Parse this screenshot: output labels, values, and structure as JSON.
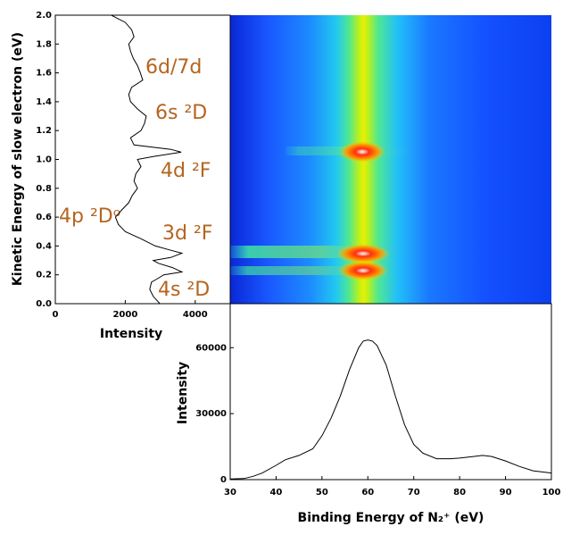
{
  "chart_data": [
    {
      "type": "line",
      "orientation": "horizontal",
      "color": "#000000",
      "ylabel": "Kinetic Energy of slow electron (eV)",
      "xlabel": "Intensity",
      "y": [
        2.0,
        1.95,
        1.9,
        1.85,
        1.8,
        1.75,
        1.7,
        1.65,
        1.6,
        1.55,
        1.5,
        1.45,
        1.4,
        1.35,
        1.3,
        1.25,
        1.2,
        1.15,
        1.1,
        1.07,
        1.05,
        1.02,
        1.0,
        0.95,
        0.9,
        0.85,
        0.8,
        0.75,
        0.7,
        0.65,
        0.6,
        0.55,
        0.5,
        0.45,
        0.4,
        0.37,
        0.35,
        0.32,
        0.3,
        0.28,
        0.25,
        0.22,
        0.2,
        0.17,
        0.15,
        0.1,
        0.05,
        0.0
      ],
      "values": [
        1600,
        2000,
        2180,
        2250,
        2100,
        2150,
        2230,
        2350,
        2430,
        2500,
        2180,
        2100,
        2150,
        2350,
        2600,
        2550,
        2450,
        2150,
        2250,
        3300,
        3600,
        2800,
        2350,
        2450,
        2300,
        2250,
        2350,
        2200,
        2100,
        1900,
        1720,
        1800,
        2000,
        2450,
        2860,
        3300,
        3620,
        3300,
        2800,
        2950,
        3350,
        3620,
        3100,
        2900,
        2750,
        2700,
        2800,
        2990
      ],
      "xlim": [
        0,
        5000
      ],
      "xticks": [
        0,
        2000,
        4000
      ],
      "ylim": [
        0,
        2.0
      ],
      "yticks": [
        {
          "value": 0,
          "label": "0.0"
        },
        {
          "value": 0.2,
          "label": "0.2"
        },
        {
          "value": 0.4,
          "label": "0.4"
        },
        {
          "value": 0.6,
          "label": "0.6"
        },
        {
          "value": 0.8,
          "label": "0.8"
        },
        {
          "value": 1.0,
          "label": "1.0"
        },
        {
          "value": 1.2,
          "label": "1.2"
        },
        {
          "value": 1.4,
          "label": "1.4"
        },
        {
          "value": 1.6,
          "label": "1.6"
        },
        {
          "value": 1.8,
          "label": "1.8"
        },
        {
          "value": 2.0,
          "label": "2.0"
        }
      ],
      "annotations": [
        "6d/7d",
        "6s ²D",
        "4d ²F",
        "4p ²Dᵒ",
        "3d ²F",
        "4s ²D"
      ]
    },
    {
      "type": "line",
      "color": "#000000",
      "xlabel": "Binding Energy of N₂⁺ (eV)",
      "ylabel": "Intensity",
      "x": [
        30,
        33,
        35,
        37,
        40,
        42,
        45,
        48,
        50,
        52,
        54,
        56,
        58,
        59,
        60,
        61,
        62,
        64,
        66,
        68,
        70,
        72,
        75,
        78,
        80,
        83,
        85,
        87,
        90,
        93,
        96,
        100
      ],
      "values": [
        300,
        500,
        1500,
        3000,
        6500,
        9000,
        11000,
        14000,
        20000,
        28000,
        38000,
        50000,
        60000,
        63000,
        63500,
        63000,
        61000,
        52000,
        38000,
        25000,
        16000,
        12000,
        9500,
        9500,
        9800,
        10500,
        11000,
        10500,
        8500,
        6000,
        4000,
        3000
      ],
      "xlim": [
        30,
        100
      ],
      "xticks": [
        30,
        40,
        50,
        60,
        70,
        80,
        90,
        100
      ],
      "ylim": [
        0,
        80000
      ],
      "yticks": [
        0,
        30000,
        60000
      ]
    }
  ]
}
